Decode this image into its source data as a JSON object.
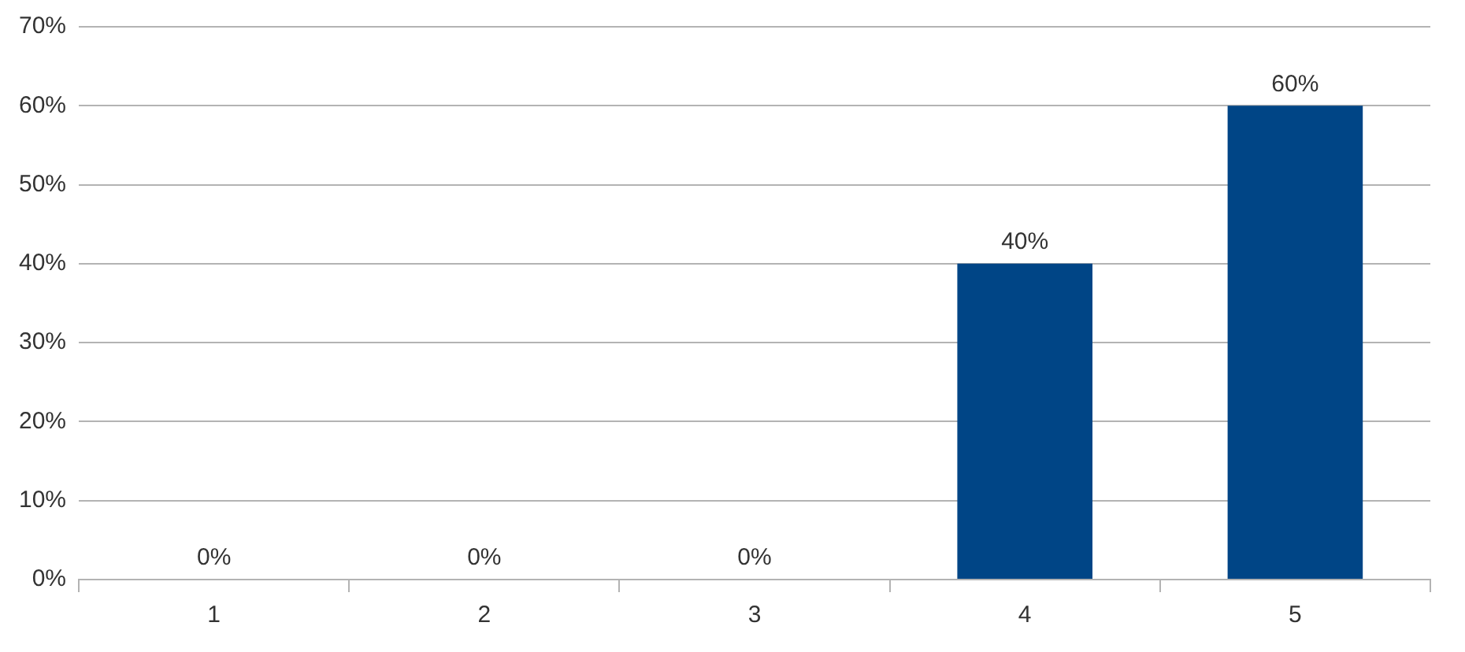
{
  "chart_data": {
    "type": "bar",
    "categories": [
      "1",
      "2",
      "3",
      "4",
      "5"
    ],
    "values": [
      0,
      0,
      0,
      40,
      60
    ],
    "color": "#004586",
    "value_labels": [
      "0%",
      "0%",
      "0%",
      "40%",
      "60%"
    ],
    "ylim": [
      0,
      70
    ],
    "yticks": [
      {
        "value": 0,
        "label": "0%"
      },
      {
        "value": 10,
        "label": "10%"
      },
      {
        "value": 20,
        "label": "20%"
      },
      {
        "value": 30,
        "label": "30%"
      },
      {
        "value": 40,
        "label": "40%"
      },
      {
        "value": 50,
        "label": "50%"
      },
      {
        "value": 60,
        "label": "60%"
      },
      {
        "value": 70,
        "label": "70%"
      }
    ],
    "grid": "y",
    "legend": false
  }
}
